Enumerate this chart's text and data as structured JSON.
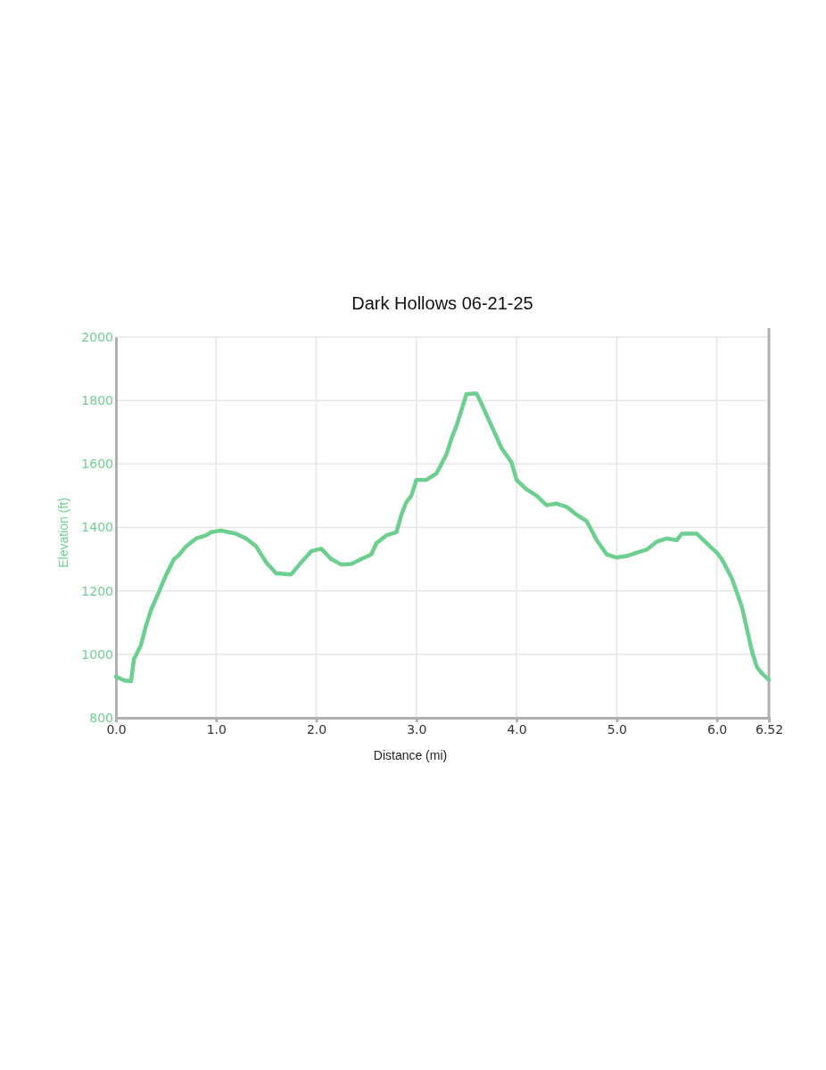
{
  "chart_data": {
    "type": "line",
    "title": "Dark Hollows 06-21-25",
    "xlabel": "Distance (mi)",
    "ylabel": "Elevation (ft)",
    "x": [
      0.0,
      0.08,
      0.15,
      0.18,
      0.25,
      0.3,
      0.35,
      0.42,
      0.5,
      0.58,
      0.62,
      0.7,
      0.8,
      0.9,
      0.95,
      1.05,
      1.2,
      1.3,
      1.4,
      1.5,
      1.6,
      1.75,
      1.85,
      1.95,
      2.05,
      2.15,
      2.25,
      2.35,
      2.45,
      2.55,
      2.6,
      2.7,
      2.8,
      2.85,
      2.9,
      2.95,
      3.0,
      3.1,
      3.2,
      3.25,
      3.3,
      3.35,
      3.4,
      3.45,
      3.5,
      3.6,
      3.65,
      3.75,
      3.85,
      3.95,
      4.0,
      4.1,
      4.2,
      4.3,
      4.4,
      4.5,
      4.6,
      4.7,
      4.8,
      4.9,
      5.0,
      5.1,
      5.2,
      5.3,
      5.4,
      5.5,
      5.6,
      5.65,
      5.8,
      5.9,
      6.0,
      6.05,
      6.15,
      6.25,
      6.3,
      6.35,
      6.4,
      6.45,
      6.52
    ],
    "series": [
      {
        "color": "#6dcf8f",
        "values": [
          930,
          918,
          915,
          985,
          1030,
          1090,
          1140,
          1190,
          1250,
          1300,
          1310,
          1340,
          1365,
          1375,
          1385,
          1390,
          1380,
          1365,
          1340,
          1290,
          1255,
          1252,
          1290,
          1325,
          1333,
          1300,
          1283,
          1285,
          1300,
          1315,
          1350,
          1375,
          1385,
          1440,
          1480,
          1500,
          1550,
          1550,
          1570,
          1600,
          1630,
          1680,
          1720,
          1770,
          1820,
          1822,
          1790,
          1720,
          1650,
          1605,
          1550,
          1520,
          1500,
          1470,
          1475,
          1465,
          1440,
          1420,
          1360,
          1315,
          1305,
          1310,
          1320,
          1330,
          1355,
          1365,
          1360,
          1380,
          1380,
          1350,
          1320,
          1300,
          1240,
          1150,
          1080,
          1010,
          960,
          940,
          920
        ]
      }
    ],
    "xlim": [
      0,
      6.52
    ],
    "xticks": [
      {
        "value": 0,
        "label": "0.0"
      },
      {
        "value": 1,
        "label": "1.0"
      },
      {
        "value": 2,
        "label": "2.0"
      },
      {
        "value": 3,
        "label": "3.0"
      },
      {
        "value": 4,
        "label": "4.0"
      },
      {
        "value": 5,
        "label": "5.0"
      },
      {
        "value": 6,
        "label": "6.0"
      },
      6.52
    ],
    "ylim": [
      800,
      2000
    ],
    "yticks": [
      800,
      1000,
      1200,
      1400,
      1600,
      1800,
      2000
    ],
    "grid": true,
    "marker": "none",
    "line_style": "solid"
  }
}
